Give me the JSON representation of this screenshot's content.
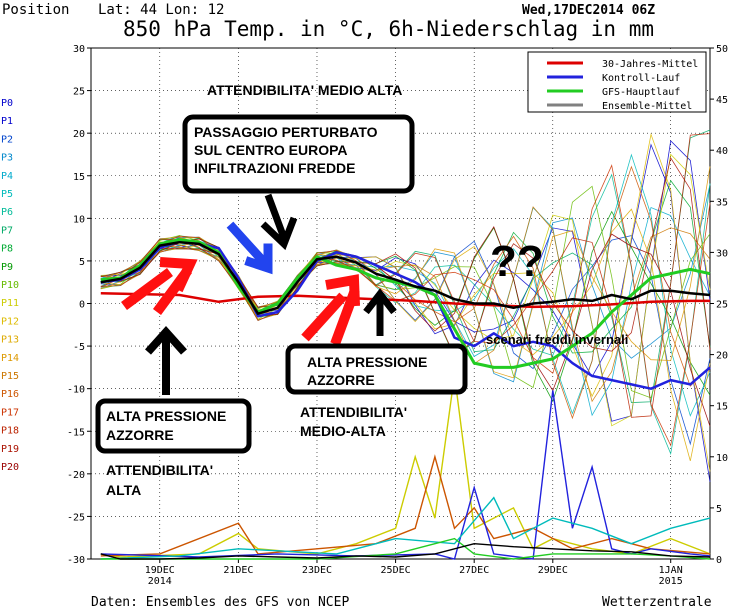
{
  "header": {
    "position_label": "Position",
    "lat_lon": "Lat: 44 Lon: 12",
    "title": "850 hPa Temp. in °C, 6h-Niederschlag in mm",
    "date": "Wed,17DEC2014 06Z"
  },
  "footer": {
    "source": "Daten: Ensembles des GFS von NCEP",
    "brand": "Wetterzentrale"
  },
  "members": [
    "P0",
    "P1",
    "P2",
    "P3",
    "P4",
    "P5",
    "P6",
    "P7",
    "P8",
    "P9",
    "P10",
    "P11",
    "P12",
    "P13",
    "P14",
    "P15",
    "P16",
    "P17",
    "P18",
    "P19",
    "P20"
  ],
  "member_colors": [
    "#0000cc",
    "#0000cc",
    "#0044cc",
    "#0088cc",
    "#00aacc",
    "#00bbbb",
    "#00bb99",
    "#00aa66",
    "#00aa33",
    "#009900",
    "#66bb00",
    "#cccc00",
    "#ddbb00",
    "#ddaa00",
    "#dd9900",
    "#cc7700",
    "#cc5500",
    "#cc3300",
    "#bb2200",
    "#aa1100",
    "#990000"
  ],
  "legend": [
    {
      "label": "30-Jahres-Mittel",
      "color": "#dd0000"
    },
    {
      "label": "Kontroll-Lauf",
      "color": "#2222dd"
    },
    {
      "label": "GFS-Hauptlauf",
      "color": "#22cc22"
    },
    {
      "label": "Ensemble-Mittel",
      "color": "#808080"
    }
  ],
  "annotations": {
    "top_note": "ATTENDIBILITA' MEDIO ALTA",
    "perturbation": [
      "PASSAGGIO PERTURBATO",
      "SUL CENTRO EUROPA",
      "INFILTRAZIONI FREDDE"
    ],
    "azzorre1": [
      "ALTA PRESSIONE",
      "AZZORRE"
    ],
    "azzorre2": [
      "ALTA PRESSIONE",
      "AZZORRE"
    ],
    "attend_alta": [
      "ATTENDIBILITA'",
      "ALTA"
    ],
    "attend_medio": [
      "ATTENDIBILITA'",
      "MEDIO-ALTA"
    ],
    "question": "??",
    "cold": "scenari freddi invernali"
  },
  "chart_data": {
    "type": "line",
    "x_ticks": [
      {
        "label": "19DEC",
        "sub": "2014",
        "day": 19
      },
      {
        "label": "21DEC",
        "sub": "",
        "day": 21
      },
      {
        "label": "23DEC",
        "sub": "",
        "day": 23
      },
      {
        "label": "25DEC",
        "sub": "",
        "day": 25
      },
      {
        "label": "27DEC",
        "sub": "",
        "day": 27
      },
      {
        "label": "29DEC",
        "sub": "",
        "day": 29
      },
      {
        "label": "1JAN",
        "sub": "2015",
        "day": 32
      }
    ],
    "xlim": [
      17.25,
      33.0
    ],
    "ylim_left": [
      -30,
      30
    ],
    "y_ticks_left": [
      -30,
      -25,
      -20,
      -15,
      -10,
      -5,
      0,
      5,
      10,
      15,
      20,
      25,
      30
    ],
    "ylim_right": [
      0,
      50
    ],
    "y_ticks_right": [
      0,
      5,
      10,
      15,
      20,
      25,
      30,
      35,
      40,
      45,
      50
    ],
    "grid": true,
    "legend_position": "top-right",
    "series": [
      {
        "name": "30-Jahres-Mittel",
        "color": "#dd0000",
        "width": 2.5,
        "points": [
          [
            17.5,
            1.2
          ],
          [
            18.5,
            1.1
          ],
          [
            19.5,
            1.0
          ],
          [
            20.5,
            0.2
          ],
          [
            21.5,
            0.8
          ],
          [
            22.5,
            0.9
          ],
          [
            23.5,
            0.7
          ],
          [
            24.5,
            0.5
          ],
          [
            25.5,
            0.3
          ],
          [
            26.5,
            0.0
          ],
          [
            27.5,
            -0.2
          ],
          [
            28.5,
            -0.4
          ],
          [
            29.5,
            -0.3
          ],
          [
            30.5,
            -0.1
          ],
          [
            31.5,
            0.2
          ],
          [
            32.5,
            0.3
          ],
          [
            33.0,
            0.3
          ]
        ]
      },
      {
        "name": "Kontroll-Lauf",
        "color": "#2222dd",
        "width": 2.5,
        "points": [
          [
            17.5,
            2.5
          ],
          [
            18.0,
            2.8
          ],
          [
            18.5,
            4.0
          ],
          [
            19.0,
            6.5
          ],
          [
            19.5,
            7.3
          ],
          [
            20.0,
            7.0
          ],
          [
            20.5,
            6.5
          ],
          [
            21.0,
            3.0
          ],
          [
            21.5,
            -1.5
          ],
          [
            22.0,
            -1.0
          ],
          [
            22.5,
            1.5
          ],
          [
            23.0,
            5.0
          ],
          [
            23.5,
            6.0
          ],
          [
            24.0,
            5.5
          ],
          [
            24.5,
            4.5
          ],
          [
            25.0,
            3.5
          ],
          [
            25.5,
            2.5
          ],
          [
            26.0,
            1.0
          ],
          [
            26.5,
            -4.0
          ],
          [
            27.0,
            -5.0
          ],
          [
            27.5,
            -3.5
          ],
          [
            28.0,
            -5.0
          ],
          [
            28.5,
            -4.5
          ],
          [
            29.0,
            -5.0
          ],
          [
            29.5,
            -7.0
          ],
          [
            30.0,
            -8.5
          ],
          [
            30.5,
            -9.0
          ],
          [
            31.0,
            -9.5
          ],
          [
            31.5,
            -10.0
          ],
          [
            32.0,
            -9.0
          ],
          [
            32.5,
            -9.5
          ],
          [
            33.0,
            -7.5
          ]
        ]
      },
      {
        "name": "GFS-Hauptlauf",
        "color": "#22cc22",
        "width": 3,
        "points": [
          [
            17.5,
            2.8
          ],
          [
            18.0,
            3.0
          ],
          [
            18.5,
            4.5
          ],
          [
            19.0,
            7.0
          ],
          [
            19.5,
            7.5
          ],
          [
            20.0,
            7.2
          ],
          [
            20.5,
            6.0
          ],
          [
            21.0,
            2.0
          ],
          [
            21.5,
            -1.0
          ],
          [
            22.0,
            0.0
          ],
          [
            22.5,
            3.0
          ],
          [
            23.0,
            5.5
          ],
          [
            23.5,
            4.5
          ],
          [
            24.0,
            4.0
          ],
          [
            24.5,
            3.0
          ],
          [
            25.0,
            2.5
          ],
          [
            25.5,
            2.0
          ],
          [
            26.0,
            1.0
          ],
          [
            26.5,
            -3.0
          ],
          [
            27.0,
            -7.0
          ],
          [
            27.5,
            -7.5
          ],
          [
            28.0,
            -7.5
          ],
          [
            28.5,
            -7.0
          ],
          [
            29.0,
            -6.5
          ],
          [
            29.5,
            -5.0
          ],
          [
            30.0,
            -3.5
          ],
          [
            30.5,
            -1.0
          ],
          [
            31.0,
            1.0
          ],
          [
            31.5,
            3.0
          ],
          [
            32.0,
            3.5
          ],
          [
            32.5,
            4.0
          ],
          [
            33.0,
            3.5
          ]
        ]
      },
      {
        "name": "Ensemble-Mittel",
        "color": "#000000",
        "width": 2.5,
        "points": [
          [
            17.5,
            2.5
          ],
          [
            18.0,
            2.9
          ],
          [
            18.5,
            4.2
          ],
          [
            19.0,
            6.8
          ],
          [
            19.5,
            7.2
          ],
          [
            20.0,
            7.0
          ],
          [
            20.5,
            5.8
          ],
          [
            21.0,
            2.5
          ],
          [
            21.5,
            -1.2
          ],
          [
            22.0,
            -0.5
          ],
          [
            22.5,
            2.5
          ],
          [
            23.0,
            5.2
          ],
          [
            23.5,
            5.5
          ],
          [
            24.0,
            4.8
          ],
          [
            24.5,
            3.5
          ],
          [
            25.0,
            2.8
          ],
          [
            25.5,
            2.0
          ],
          [
            26.0,
            1.5
          ],
          [
            26.5,
            0.5
          ],
          [
            27.0,
            0.0
          ],
          [
            27.5,
            0.0
          ],
          [
            28.0,
            -0.5
          ],
          [
            28.5,
            0.0
          ],
          [
            29.0,
            0.2
          ],
          [
            29.5,
            0.5
          ],
          [
            30.0,
            0.3
          ],
          [
            30.5,
            1.0
          ],
          [
            31.0,
            0.5
          ],
          [
            31.5,
            1.5
          ],
          [
            32.0,
            1.5
          ],
          [
            32.5,
            1.2
          ],
          [
            33.0,
            1.0
          ]
        ]
      }
    ],
    "precip_series": [
      {
        "color": "#cccc00",
        "points": [
          [
            17.5,
            0.5
          ],
          [
            18.0,
            0.2
          ],
          [
            20.0,
            0.5
          ],
          [
            21.0,
            2.5
          ],
          [
            21.5,
            1.0
          ],
          [
            23.0,
            0.5
          ],
          [
            24.0,
            1.5
          ],
          [
            25.0,
            3.0
          ],
          [
            25.5,
            10.0
          ],
          [
            26.0,
            4.0
          ],
          [
            26.5,
            18.0
          ],
          [
            27.0,
            3.0
          ],
          [
            28.0,
            5.0
          ],
          [
            28.5,
            1.0
          ],
          [
            29.0,
            2.0
          ],
          [
            30.0,
            1.0
          ],
          [
            31.0,
            0.5
          ],
          [
            32.0,
            2.0
          ],
          [
            33.0,
            0.5
          ]
        ]
      },
      {
        "color": "#cc5500",
        "points": [
          [
            17.5,
            0.3
          ],
          [
            19.0,
            0.5
          ],
          [
            21.0,
            3.5
          ],
          [
            21.5,
            0.5
          ],
          [
            23.0,
            1.0
          ],
          [
            24.5,
            1.5
          ],
          [
            25.5,
            3.0
          ],
          [
            26.0,
            10.0
          ],
          [
            26.5,
            3.0
          ],
          [
            27.0,
            5.0
          ],
          [
            27.5,
            2.0
          ],
          [
            28.5,
            3.0
          ],
          [
            29.5,
            1.0
          ],
          [
            30.5,
            2.0
          ],
          [
            31.5,
            1.0
          ],
          [
            33.0,
            0.5
          ]
        ]
      },
      {
        "color": "#2222dd",
        "points": [
          [
            17.5,
            0.5
          ],
          [
            20.0,
            0.2
          ],
          [
            22.0,
            0.5
          ],
          [
            24.0,
            0.3
          ],
          [
            26.0,
            0.5
          ],
          [
            26.5,
            0.0
          ],
          [
            27.0,
            7.0
          ],
          [
            27.5,
            0.5
          ],
          [
            28.5,
            0.0
          ],
          [
            29.0,
            16.5
          ],
          [
            29.5,
            3.0
          ],
          [
            30.0,
            9.0
          ],
          [
            30.5,
            1.0
          ],
          [
            31.0,
            0.5
          ],
          [
            31.5,
            1.0
          ],
          [
            32.5,
            0.5
          ],
          [
            33.0,
            0.3
          ]
        ]
      },
      {
        "color": "#00bbbb",
        "points": [
          [
            17.5,
            0.0
          ],
          [
            19.5,
            0.3
          ],
          [
            21.0,
            1.0
          ],
          [
            23.5,
            0.5
          ],
          [
            25.0,
            2.0
          ],
          [
            26.5,
            1.5
          ],
          [
            27.5,
            6.0
          ],
          [
            28.0,
            2.0
          ],
          [
            29.0,
            4.0
          ],
          [
            30.0,
            3.0
          ],
          [
            31.0,
            1.5
          ],
          [
            32.0,
            3.0
          ],
          [
            33.0,
            4.0
          ]
        ]
      },
      {
        "color": "#22cc22",
        "points": [
          [
            17.5,
            0.0
          ],
          [
            19.0,
            0.0
          ],
          [
            21.0,
            0.0
          ],
          [
            23.0,
            0.0
          ],
          [
            25.0,
            0.5
          ],
          [
            26.0,
            1.5
          ],
          [
            26.5,
            2.0
          ],
          [
            27.0,
            0.5
          ],
          [
            28.0,
            0.0
          ],
          [
            29.0,
            0.5
          ],
          [
            30.0,
            0.5
          ],
          [
            31.0,
            0.5
          ],
          [
            32.0,
            0.3
          ],
          [
            33.0,
            0.0
          ]
        ]
      },
      {
        "color": "#000000",
        "points": [
          [
            17.5,
            0.5
          ],
          [
            18.0,
            0.0
          ],
          [
            19.0,
            0.0
          ],
          [
            20.0,
            0.1
          ],
          [
            21.0,
            0.3
          ],
          [
            22.0,
            0.2
          ],
          [
            23.0,
            0.1
          ],
          [
            24.0,
            0.3
          ],
          [
            25.0,
            0.2
          ],
          [
            26.0,
            0.5
          ],
          [
            27.0,
            1.5
          ],
          [
            28.0,
            1.2
          ],
          [
            29.0,
            1.0
          ],
          [
            30.0,
            0.8
          ],
          [
            31.0,
            0.7
          ],
          [
            32.0,
            0.3
          ],
          [
            33.0,
            0.2
          ]
        ]
      }
    ]
  }
}
